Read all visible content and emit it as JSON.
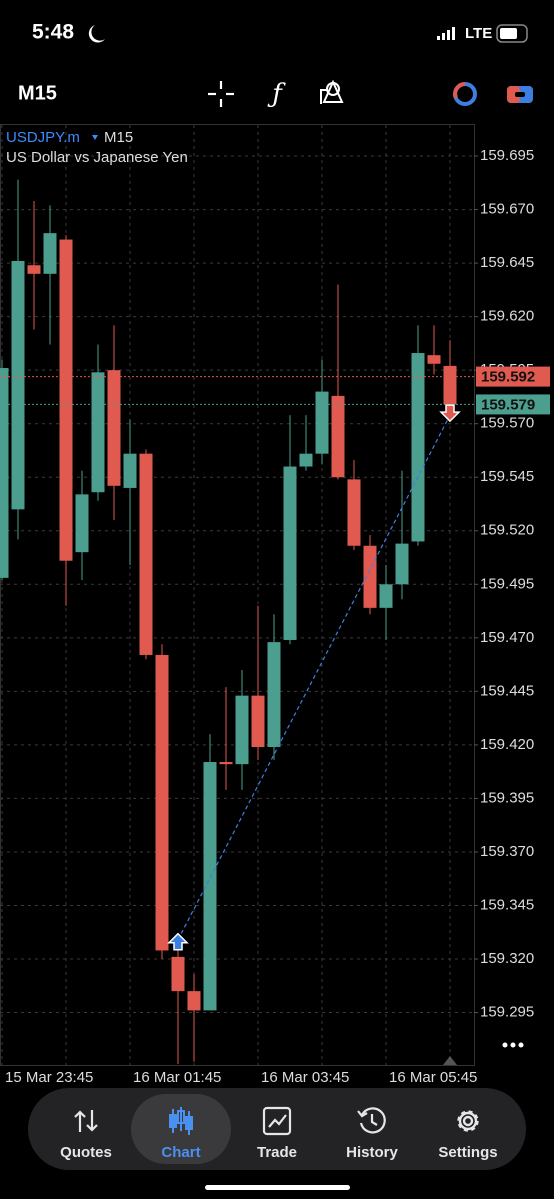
{
  "status_bar": {
    "time": "5:48",
    "network": "LTE"
  },
  "header": {
    "timeframe": "M15"
  },
  "chart_data": {
    "type": "candlestick",
    "symbol": "USDJPY.m",
    "timeframe": "M15",
    "description": "US Dollar vs Japanese Yen",
    "categories": [
      "15 Mar 23:45",
      null,
      null,
      null,
      null,
      null,
      null,
      null,
      "16 Mar 01:45",
      null,
      null,
      null,
      null,
      null,
      null,
      null,
      "16 Mar 03:45",
      null,
      null,
      null,
      null,
      null,
      null,
      null,
      "16 Mar 05:45",
      null,
      null,
      null,
      null
    ],
    "open": [
      159.498,
      159.53,
      159.644,
      159.64,
      159.656,
      159.51,
      159.538,
      159.595,
      159.54,
      159.556,
      159.462,
      159.321,
      159.305,
      159.296,
      159.412,
      159.411,
      159.443,
      159.419,
      159.469,
      159.55,
      159.556,
      159.583,
      159.544,
      159.513,
      159.484,
      159.495,
      159.515,
      159.602,
      159.597
    ],
    "high": [
      159.6,
      159.684,
      159.674,
      159.672,
      159.658,
      159.548,
      159.607,
      159.616,
      159.572,
      159.558,
      159.467,
      159.329,
      159.313,
      159.425,
      159.447,
      159.455,
      159.485,
      159.481,
      159.574,
      159.574,
      159.6,
      159.635,
      159.553,
      159.518,
      159.504,
      159.548,
      159.616,
      159.616,
      159.609
    ],
    "low": [
      159.497,
      159.516,
      159.614,
      159.607,
      159.485,
      159.497,
      159.534,
      159.525,
      159.504,
      159.46,
      159.32,
      159.271,
      159.272,
      159.296,
      159.399,
      159.399,
      159.413,
      159.413,
      159.467,
      159.548,
      159.551,
      159.544,
      159.511,
      159.481,
      159.469,
      159.488,
      159.513,
      159.593,
      159.572
    ],
    "close": [
      159.596,
      159.646,
      159.64,
      159.659,
      159.506,
      159.537,
      159.594,
      159.541,
      159.556,
      159.462,
      159.324,
      159.305,
      159.296,
      159.412,
      159.411,
      159.443,
      159.419,
      159.468,
      159.55,
      159.556,
      159.585,
      159.545,
      159.513,
      159.484,
      159.495,
      159.514,
      159.603,
      159.598,
      159.579
    ],
    "up_color": "#4c9e8e",
    "down_color": "#e05a50",
    "ylim": [
      159.2705,
      159.7095
    ],
    "yticks": [
      159.695,
      {
        "value": 159.67,
        "label": "159.670"
      },
      159.645,
      {
        "value": 159.62,
        "label": "159.620"
      },
      159.595,
      {
        "value": 159.57,
        "label": "159.570"
      },
      159.545,
      {
        "value": 159.52,
        "label": "159.520"
      },
      159.495,
      {
        "value": 159.47,
        "label": "159.470"
      },
      159.445,
      {
        "value": 159.42,
        "label": "159.420"
      },
      159.395,
      {
        "value": 159.37,
        "label": "159.370"
      },
      159.345,
      {
        "value": 159.32,
        "label": "159.320"
      },
      159.295
    ],
    "grid": true,
    "ask": 159.592,
    "ask_color": "#e05a50",
    "bid": 159.579,
    "bid_color": "#4c9e8e",
    "trade": {
      "entry": 159.329,
      "exit": 159.574
    }
  },
  "tab_bar": {
    "tabs": [
      "Quotes",
      "Chart",
      "Trade",
      "History",
      "Settings"
    ]
  }
}
